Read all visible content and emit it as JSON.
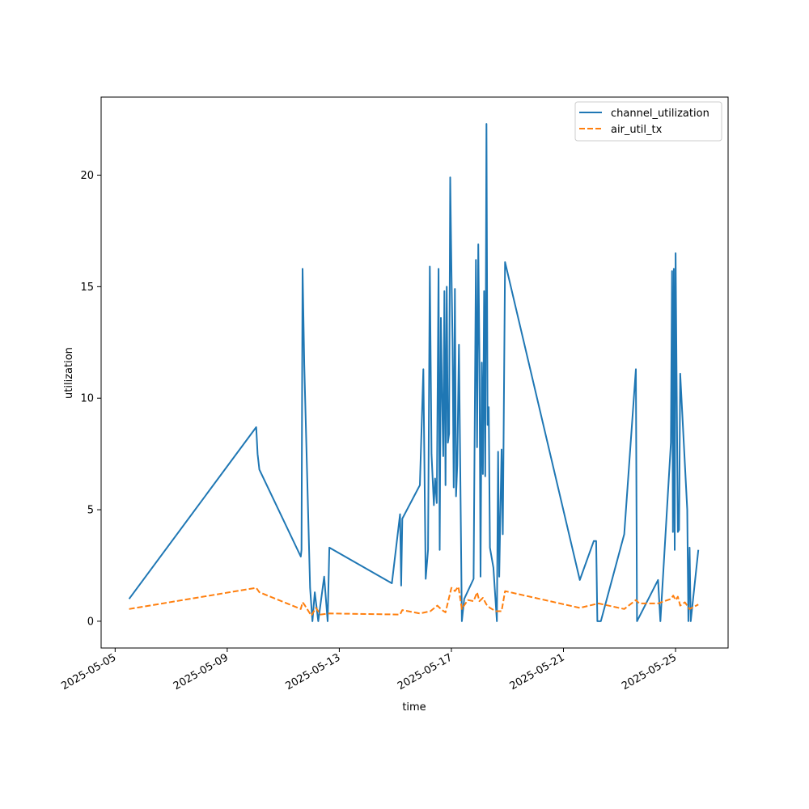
{
  "chart_data": {
    "type": "line",
    "title": "",
    "xlabel": "time",
    "ylabel": "utilization",
    "x_type": "date",
    "xlim": [
      "2025-05-04T12:00",
      "2025-05-26T21:00"
    ],
    "ylim": [
      -1.2,
      23.5
    ],
    "x_ticks": [
      "2025-05-05",
      "2025-05-09",
      "2025-05-13",
      "2025-05-17",
      "2025-05-21",
      "2025-05-25"
    ],
    "y_ticks": [
      0,
      5,
      10,
      15,
      20
    ],
    "grid": false,
    "legend": {
      "position": "top-right"
    },
    "series": [
      {
        "name": "channel_utilization",
        "color": "#1f77b4",
        "dash": "solid",
        "points": [
          [
            "2025-05-05T12:00",
            1.0
          ],
          [
            "2025-05-10T00:50",
            8.7
          ],
          [
            "2025-05-10T02:00",
            7.5
          ],
          [
            "2025-05-10T03:30",
            6.8
          ],
          [
            "2025-05-11T15:00",
            2.9
          ],
          [
            "2025-05-11T15:40",
            3.2
          ],
          [
            "2025-05-11T16:30",
            15.8
          ],
          [
            "2025-05-11T18:00",
            11.5
          ],
          [
            "2025-05-11T23:00",
            1.5
          ],
          [
            "2025-05-12T01:00",
            0.0
          ],
          [
            "2025-05-12T03:00",
            1.3
          ],
          [
            "2025-05-12T06:00",
            0.0
          ],
          [
            "2025-05-12T11:00",
            2.0
          ],
          [
            "2025-05-12T14:00",
            0.0
          ],
          [
            "2025-05-12T15:30",
            3.3
          ],
          [
            "2025-05-14T21:00",
            1.7
          ],
          [
            "2025-05-15T04:00",
            4.8
          ],
          [
            "2025-05-15T05:00",
            1.6
          ],
          [
            "2025-05-15T06:00",
            4.6
          ],
          [
            "2025-05-15T21:00",
            6.1
          ],
          [
            "2025-05-16T00:00",
            11.3
          ],
          [
            "2025-05-16T02:00",
            1.9
          ],
          [
            "2025-05-16T04:00",
            3.2
          ],
          [
            "2025-05-16T05:30",
            15.9
          ],
          [
            "2025-05-16T07:00",
            7.5
          ],
          [
            "2025-05-16T09:00",
            5.2
          ],
          [
            "2025-05-16T10:00",
            6.4
          ],
          [
            "2025-05-16T11:30",
            5.3
          ],
          [
            "2025-05-16T13:00",
            15.8
          ],
          [
            "2025-05-16T14:00",
            3.2
          ],
          [
            "2025-05-16T15:00",
            13.6
          ],
          [
            "2025-05-16T16:00",
            10.2
          ],
          [
            "2025-05-16T17:00",
            7.4
          ],
          [
            "2025-05-16T18:00",
            14.8
          ],
          [
            "2025-05-16T19:00",
            6.1
          ],
          [
            "2025-05-16T20:00",
            15.0
          ],
          [
            "2025-05-16T21:00",
            8.0
          ],
          [
            "2025-05-16T22:00",
            8.4
          ],
          [
            "2025-05-16T23:00",
            19.9
          ],
          [
            "2025-05-17T00:00",
            15.8
          ],
          [
            "2025-05-17T01:00",
            12.5
          ],
          [
            "2025-05-17T02:00",
            6.0
          ],
          [
            "2025-05-17T03:00",
            14.9
          ],
          [
            "2025-05-17T04:00",
            5.6
          ],
          [
            "2025-05-17T05:00",
            7.0
          ],
          [
            "2025-05-17T06:30",
            12.4
          ],
          [
            "2025-05-17T09:00",
            0.0
          ],
          [
            "2025-05-17T11:00",
            1.0
          ],
          [
            "2025-05-17T19:00",
            1.9
          ],
          [
            "2025-05-17T21:00",
            16.2
          ],
          [
            "2025-05-17T22:00",
            7.8
          ],
          [
            "2025-05-17T23:00",
            16.9
          ],
          [
            "2025-05-18T00:00",
            12.0
          ],
          [
            "2025-05-18T01:00",
            2.0
          ],
          [
            "2025-05-18T02:00",
            11.6
          ],
          [
            "2025-05-18T03:00",
            6.6
          ],
          [
            "2025-05-18T04:00",
            14.8
          ],
          [
            "2025-05-18T05:00",
            6.5
          ],
          [
            "2025-05-18T06:00",
            22.3
          ],
          [
            "2025-05-18T07:00",
            8.8
          ],
          [
            "2025-05-18T08:00",
            9.6
          ],
          [
            "2025-05-18T09:00",
            3.3
          ],
          [
            "2025-05-18T12:00",
            2.4
          ],
          [
            "2025-05-18T15:00",
            0.0
          ],
          [
            "2025-05-18T16:00",
            7.6
          ],
          [
            "2025-05-18T17:00",
            2.0
          ],
          [
            "2025-05-18T18:00",
            5.0
          ],
          [
            "2025-05-18T19:00",
            7.7
          ],
          [
            "2025-05-18T20:00",
            3.9
          ],
          [
            "2025-05-18T22:00",
            16.1
          ],
          [
            "2025-05-21T14:00",
            1.85
          ],
          [
            "2025-05-22T02:00",
            3.6
          ],
          [
            "2025-05-22T04:00",
            3.6
          ],
          [
            "2025-05-22T05:00",
            0.0
          ],
          [
            "2025-05-22T08:00",
            0.0
          ],
          [
            "2025-05-23T04:00",
            3.9
          ],
          [
            "2025-05-23T14:00",
            11.3
          ],
          [
            "2025-05-23T15:00",
            0.0
          ],
          [
            "2025-05-24T09:00",
            1.85
          ],
          [
            "2025-05-24T11:00",
            0.0
          ],
          [
            "2025-05-24T20:00",
            8.0
          ],
          [
            "2025-05-24T21:00",
            15.7
          ],
          [
            "2025-05-24T21:45",
            4.0
          ],
          [
            "2025-05-24T22:30",
            15.8
          ],
          [
            "2025-05-24T23:15",
            3.2
          ],
          [
            "2025-05-25T00:00",
            16.5
          ],
          [
            "2025-05-25T02:00",
            4.0
          ],
          [
            "2025-05-25T03:00",
            4.1
          ],
          [
            "2025-05-25T04:00",
            11.1
          ],
          [
            "2025-05-25T10:00",
            5.0
          ],
          [
            "2025-05-25T11:00",
            0.0
          ],
          [
            "2025-05-25T12:00",
            3.3
          ],
          [
            "2025-05-25T13:00",
            0.0
          ],
          [
            "2025-05-25T19:30",
            3.2
          ]
        ]
      },
      {
        "name": "air_util_tx",
        "color": "#ff7f0e",
        "dash": "dashed",
        "points": [
          [
            "2025-05-05T12:00",
            0.55
          ],
          [
            "2025-05-10T00:50",
            1.5
          ],
          [
            "2025-05-10T03:30",
            1.3
          ],
          [
            "2025-05-11T15:00",
            0.55
          ],
          [
            "2025-05-11T16:30",
            0.85
          ],
          [
            "2025-05-11T18:00",
            0.75
          ],
          [
            "2025-05-12T00:00",
            0.25
          ],
          [
            "2025-05-12T04:00",
            0.6
          ],
          [
            "2025-05-12T08:00",
            0.3
          ],
          [
            "2025-05-12T15:30",
            0.35
          ],
          [
            "2025-05-15T04:00",
            0.3
          ],
          [
            "2025-05-15T06:00",
            0.5
          ],
          [
            "2025-05-15T21:00",
            0.35
          ],
          [
            "2025-05-16T06:00",
            0.45
          ],
          [
            "2025-05-16T12:00",
            0.7
          ],
          [
            "2025-05-16T16:00",
            0.5
          ],
          [
            "2025-05-16T19:00",
            0.4
          ],
          [
            "2025-05-17T00:00",
            1.5
          ],
          [
            "2025-05-17T03:00",
            1.35
          ],
          [
            "2025-05-17T06:00",
            1.55
          ],
          [
            "2025-05-17T09:00",
            0.55
          ],
          [
            "2025-05-17T14:00",
            0.95
          ],
          [
            "2025-05-17T19:00",
            0.9
          ],
          [
            "2025-05-17T22:00",
            1.3
          ],
          [
            "2025-05-18T00:00",
            0.9
          ],
          [
            "2025-05-18T03:00",
            1.05
          ],
          [
            "2025-05-18T06:00",
            0.75
          ],
          [
            "2025-05-18T09:00",
            0.6
          ],
          [
            "2025-05-18T14:00",
            0.45
          ],
          [
            "2025-05-18T19:00",
            0.45
          ],
          [
            "2025-05-18T22:00",
            1.35
          ],
          [
            "2025-05-21T14:00",
            0.6
          ],
          [
            "2025-05-22T06:00",
            0.8
          ],
          [
            "2025-05-23T04:00",
            0.55
          ],
          [
            "2025-05-23T14:00",
            0.95
          ],
          [
            "2025-05-23T17:00",
            0.8
          ],
          [
            "2025-05-24T09:00",
            0.8
          ],
          [
            "2025-05-24T20:00",
            1.0
          ],
          [
            "2025-05-24T22:00",
            1.15
          ],
          [
            "2025-05-25T00:00",
            0.95
          ],
          [
            "2025-05-25T02:00",
            1.1
          ],
          [
            "2025-05-25T04:00",
            0.7
          ],
          [
            "2025-05-25T08:00",
            0.85
          ],
          [
            "2025-05-25T12:00",
            0.55
          ],
          [
            "2025-05-25T19:30",
            0.75
          ]
        ]
      }
    ]
  }
}
